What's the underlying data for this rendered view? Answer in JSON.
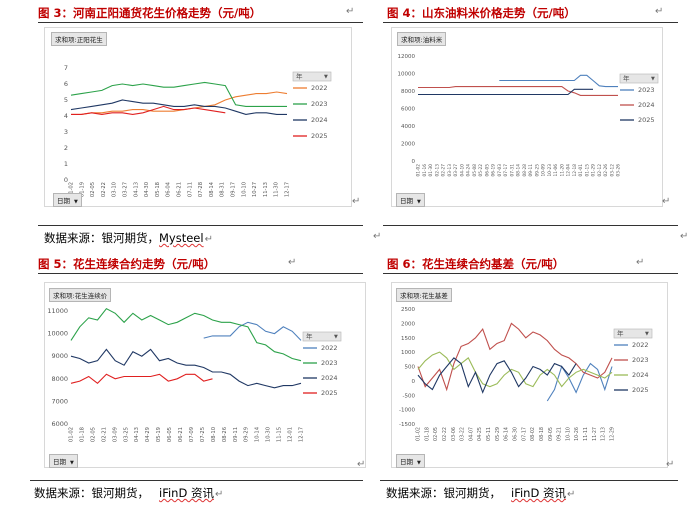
{
  "pilcrow": "↵",
  "figures": [
    {
      "title": "图 3：河南正阳通货花生价格走势（元/吨）",
      "field_button": "求和项:正阳花生",
      "series_label": "年",
      "axis_button": "日期",
      "source": {
        "prefix": "数据来源：银河期货，",
        "name": "Mysteel"
      },
      "chart_data": {
        "type": "line",
        "title": "",
        "ylim": [
          0,
          7
        ],
        "yticks": [
          0,
          1,
          2,
          3,
          4,
          5,
          6,
          7
        ],
        "xticks": [
          "01-02",
          "01-19",
          "02-05",
          "02-22",
          "03-10",
          "03-27",
          "04-13",
          "04-30",
          "05-18",
          "06-04",
          "06-21",
          "07-11",
          "07-28",
          "08-14",
          "08-31",
          "09-17",
          "10-10",
          "10-27",
          "11-13",
          "11-30",
          "12-17"
        ],
        "series": [
          {
            "name": "2022",
            "color": "#ed7d31",
            "values": [
              4.1,
              4.1,
              4.2,
              4.2,
              4.3,
              4.3,
              4.4,
              4.4,
              4.3,
              4.3,
              4.3,
              4.4,
              4.5,
              4.6,
              4.7,
              5.0,
              5.2,
              5.3,
              5.4,
              5.4,
              5.5,
              5.4
            ]
          },
          {
            "name": "2023",
            "color": "#2ca24a",
            "values": [
              5.3,
              5.4,
              5.5,
              5.6,
              5.9,
              6.0,
              5.9,
              6.0,
              5.9,
              5.8,
              5.8,
              5.9,
              6.0,
              6.1,
              6.0,
              5.9,
              4.7,
              4.6,
              4.6,
              4.6,
              4.6,
              4.6
            ]
          },
          {
            "name": "2024",
            "color": "#203864",
            "values": [
              4.4,
              4.5,
              4.6,
              4.7,
              4.8,
              5.0,
              4.9,
              4.8,
              4.8,
              4.7,
              4.6,
              4.6,
              4.7,
              4.6,
              4.6,
              4.5,
              4.3,
              4.1,
              4.2,
              4.2,
              4.1,
              4.1
            ]
          },
          {
            "name": "2025",
            "color": "#e02020",
            "values": [
              4.1,
              4.1,
              4.2,
              4.1,
              4.2,
              4.2,
              4.1,
              4.2,
              4.4,
              4.6,
              4.4,
              4.4,
              4.5,
              4.4,
              4.3,
              4.2
            ]
          }
        ]
      }
    },
    {
      "title": "图 4：山东油料米价格走势（元/吨）",
      "field_button": "求和项:油料米",
      "series_label": "年",
      "axis_button": "日期",
      "source": null,
      "chart_data": {
        "type": "line",
        "title": "",
        "ylim": [
          0,
          12000
        ],
        "yticks": [
          0,
          2000,
          4000,
          6000,
          8000,
          10000,
          12000
        ],
        "xticks": [
          "01-02",
          "01-16",
          "01-30",
          "02-13",
          "02-27",
          "03-13",
          "03-27",
          "04-10",
          "04-24",
          "05-08",
          "05-22",
          "06-05",
          "06-19",
          "07-03",
          "07-17",
          "07-31",
          "08-14",
          "08-28",
          "09-11",
          "09-25",
          "10-09",
          "10-23",
          "11-06",
          "11-20",
          "12-04",
          "12-18",
          "01-01",
          "01-15",
          "01-29",
          "02-12",
          "02-26",
          "03-12",
          "03-26"
        ],
        "series": [
          {
            "name": "2023",
            "color": "#4f81bd",
            "values": [
              null,
              null,
              null,
              null,
              null,
              null,
              null,
              null,
              null,
              null,
              null,
              null,
              null,
              9200,
              9200,
              9200,
              9200,
              9200,
              9200,
              9200,
              9200,
              9200,
              9200,
              9200,
              9200,
              9200,
              9800,
              9800,
              9200,
              8600,
              8500,
              8500,
              8500
            ]
          },
          {
            "name": "2024",
            "color": "#c0504d",
            "values": [
              8400,
              8400,
              8400,
              8400,
              8400,
              8400,
              8500,
              8500,
              8500,
              8500,
              8500,
              8500,
              8500,
              8500,
              8500,
              8500,
              8500,
              8500,
              8500,
              8500,
              8500,
              8500,
              8500,
              8500,
              8000,
              7800,
              7500,
              7500,
              7500,
              7500,
              7500,
              7500,
              7500
            ]
          },
          {
            "name": "2025",
            "color": "#203864",
            "values": [
              7600,
              7600,
              7600,
              7600,
              7600,
              7600,
              7600,
              7600,
              7600,
              7600,
              7600,
              7600,
              7600,
              7600,
              7600,
              7600,
              7600,
              7600,
              7600,
              7600,
              7600,
              7600,
              7600,
              7600,
              7600,
              8200,
              8200,
              8200,
              8200,
              null,
              null,
              null,
              null
            ]
          }
        ]
      }
    },
    {
      "title": "图 5：花生连续合约走势（元/吨）",
      "field_button": "求和项:花生连续价",
      "series_label": "年",
      "axis_button": "日期",
      "source": {
        "prefix": "数据来源：银河期货，",
        "name": "iFinD 资讯"
      },
      "chart_data": {
        "type": "line",
        "title": "",
        "ylim": [
          6000,
          11000
        ],
        "yticks": [
          6000,
          7000,
          8000,
          9000,
          10000,
          11000
        ],
        "xticks": [
          "01-02",
          "01-18",
          "02-05",
          "02-21",
          "03-09",
          "03-25",
          "04-13",
          "04-29",
          "05-19",
          "06-05",
          "06-21",
          "07-09",
          "07-25",
          "08-10",
          "08-26",
          "09-11",
          "09-29",
          "10-14",
          "10-30",
          "11-15",
          "12-01",
          "12-17"
        ],
        "series": [
          {
            "name": "2022",
            "color": "#4f81bd",
            "values": [
              null,
              null,
              null,
              null,
              null,
              null,
              null,
              null,
              null,
              null,
              null,
              null,
              null,
              null,
              null,
              9800,
              9900,
              9900,
              9900,
              10300,
              10500,
              10400,
              10100,
              10000,
              10300,
              10100,
              9700
            ]
          },
          {
            "name": "2023",
            "color": "#2ca24a",
            "values": [
              9700,
              10300,
              10700,
              10600,
              11100,
              10900,
              10500,
              10900,
              10600,
              10800,
              10600,
              10400,
              10500,
              10700,
              10900,
              10800,
              10600,
              10500,
              10500,
              10400,
              10300,
              9600,
              9500,
              9200,
              9100,
              8900,
              8800
            ]
          },
          {
            "name": "2024",
            "color": "#203864",
            "values": [
              9000,
              8900,
              8700,
              8800,
              9300,
              8800,
              8600,
              9200,
              9000,
              9300,
              8800,
              8900,
              8700,
              8600,
              8600,
              8500,
              8300,
              8300,
              8200,
              7900,
              7700,
              7800,
              7700,
              7600,
              7700,
              7700,
              7800
            ]
          },
          {
            "name": "2025",
            "color": "#e02020",
            "values": [
              7800,
              7900,
              8100,
              7800,
              8200,
              8000,
              8100,
              8100,
              8100,
              8100,
              8200,
              7900,
              8000,
              8200,
              8200,
              7900,
              8000
            ]
          }
        ]
      }
    },
    {
      "title": "图 6：花生连续合约基差（元/吨）",
      "field_button": "求和项:花生基差",
      "series_label": "年",
      "axis_button": "日期",
      "source": {
        "prefix": "数据来源：银河期货，",
        "name": "iFinD 资讯"
      },
      "chart_data": {
        "type": "line",
        "title": "",
        "ylim": [
          -1500,
          2500
        ],
        "yticks": [
          -1500,
          -1000,
          -500,
          0,
          500,
          1000,
          1500,
          2000,
          2500
        ],
        "xticks": [
          "01-02",
          "01-18",
          "02-05",
          "02-22",
          "03-06",
          "03-22",
          "04-07",
          "04-25",
          "05-11",
          "05-29",
          "06-14",
          "06-30",
          "07-17",
          "08-02",
          "08-18",
          "09-05",
          "09-21",
          "10-10",
          "10-26",
          "11-11",
          "11-27",
          "12-13",
          "12-29"
        ],
        "series": [
          {
            "name": "2022",
            "color": "#4f81bd",
            "values": [
              null,
              null,
              null,
              null,
              null,
              null,
              null,
              null,
              null,
              null,
              null,
              null,
              null,
              null,
              null,
              null,
              null,
              null,
              -700,
              -300,
              500,
              100,
              -400,
              200,
              600,
              400,
              -300,
              500
            ]
          },
          {
            "name": "2023",
            "color": "#c0504d",
            "values": [
              500,
              -200,
              100,
              400,
              -300,
              600,
              1200,
              1300,
              1500,
              1800,
              1100,
              1300,
              1400,
              2000,
              1800,
              1500,
              1700,
              1600,
              1400,
              1100,
              900,
              800,
              600,
              300,
              200,
              100,
              300,
              800
            ]
          },
          {
            "name": "2024",
            "color": "#9bbb59",
            "values": [
              400,
              700,
              900,
              1000,
              800,
              400,
              600,
              800,
              300,
              -100,
              -200,
              -100,
              200,
              400,
              300,
              -100,
              -200,
              200,
              400,
              200,
              -200,
              100,
              300,
              400,
              300,
              200,
              100,
              300
            ]
          },
          {
            "name": "2025",
            "color": "#203864",
            "values": [
              200,
              -100,
              -300,
              200,
              500,
              800,
              600,
              -200,
              300,
              -400,
              200,
              600,
              700,
              300,
              -200,
              100,
              500,
              400,
              200,
              600,
              500,
              200,
              600
            ]
          }
        ]
      }
    }
  ]
}
